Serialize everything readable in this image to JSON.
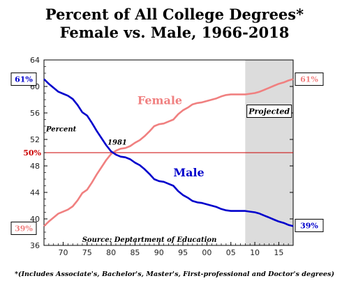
{
  "chart_data": {
    "type": "line",
    "title": "Percent of All College Degrees*",
    "subtitle": "Female vs. Male, 1966-2018",
    "ylabel": "Percent",
    "xlim": [
      1966,
      2018
    ],
    "ylim": [
      36,
      64
    ],
    "yticks": [
      36,
      40,
      44,
      48,
      52,
      56,
      60,
      64
    ],
    "xticks": [
      1970,
      1975,
      1980,
      1985,
      1990,
      1995,
      2000,
      2005,
      2010,
      2015
    ],
    "xtick_labels": [
      "70",
      "75",
      "80",
      "85",
      "90",
      "95",
      "00",
      "05",
      "10",
      "15"
    ],
    "ytick_labels": [
      "36",
      "40",
      "44",
      "48",
      "52",
      "56",
      "60",
      "64"
    ],
    "grid": false,
    "projected_from": 2008,
    "projected_label": "Projected",
    "reference_line": {
      "y": 50,
      "label": "50%",
      "color": "#cc0000"
    },
    "crossover": {
      "x": 1981,
      "label": "1981"
    },
    "series": [
      {
        "name": "Female",
        "color": "#f08080",
        "start_label": "39%",
        "end_label": "61%",
        "x": [
          1966,
          1967,
          1968,
          1969,
          1970,
          1971,
          1972,
          1973,
          1974,
          1975,
          1976,
          1977,
          1978,
          1979,
          1980,
          1981,
          1982,
          1983,
          1984,
          1985,
          1986,
          1987,
          1988,
          1989,
          1990,
          1991,
          1992,
          1993,
          1994,
          1995,
          1996,
          1997,
          1998,
          1999,
          2000,
          2001,
          2002,
          2003,
          2004,
          2005,
          2006,
          2007,
          2008,
          2009,
          2010,
          2011,
          2012,
          2013,
          2014,
          2015,
          2016,
          2017,
          2018
        ],
        "values": [
          38.9,
          39.6,
          40.2,
          40.8,
          41.1,
          41.4,
          41.9,
          42.8,
          43.9,
          44.4,
          45.5,
          46.7,
          47.8,
          48.9,
          49.8,
          50.3,
          50.6,
          50.7,
          51.0,
          51.5,
          51.9,
          52.5,
          53.2,
          54.0,
          54.3,
          54.4,
          54.7,
          55.0,
          55.8,
          56.4,
          56.8,
          57.3,
          57.5,
          57.6,
          57.8,
          58.0,
          58.2,
          58.5,
          58.7,
          58.8,
          58.8,
          58.8,
          58.8,
          58.9,
          59.0,
          59.2,
          59.5,
          59.8,
          60.1,
          60.4,
          60.6,
          60.9,
          61.1
        ]
      },
      {
        "name": "Male",
        "color": "#0000cc",
        "start_label": "61%",
        "end_label": "39%",
        "x": [
          1966,
          1967,
          1968,
          1969,
          1970,
          1971,
          1972,
          1973,
          1974,
          1975,
          1976,
          1977,
          1978,
          1979,
          1980,
          1981,
          1982,
          1983,
          1984,
          1985,
          1986,
          1987,
          1988,
          1989,
          1990,
          1991,
          1992,
          1993,
          1994,
          1995,
          1996,
          1997,
          1998,
          1999,
          2000,
          2001,
          2002,
          2003,
          2004,
          2005,
          2006,
          2007,
          2008,
          2009,
          2010,
          2011,
          2012,
          2013,
          2014,
          2015,
          2016,
          2017,
          2018
        ],
        "values": [
          61.1,
          60.4,
          59.8,
          59.2,
          58.9,
          58.6,
          58.1,
          57.2,
          56.1,
          55.6,
          54.5,
          53.3,
          52.2,
          51.1,
          50.2,
          49.7,
          49.4,
          49.3,
          49.0,
          48.5,
          48.1,
          47.5,
          46.8,
          46.0,
          45.7,
          45.6,
          45.3,
          45.0,
          44.2,
          43.6,
          43.2,
          42.7,
          42.5,
          42.4,
          42.2,
          42.0,
          41.8,
          41.5,
          41.3,
          41.2,
          41.2,
          41.2,
          41.2,
          41.1,
          41.0,
          40.8,
          40.5,
          40.2,
          39.9,
          39.6,
          39.4,
          39.1,
          38.9
        ]
      }
    ],
    "source": "Source: Deptartment of Education",
    "footnote": "*(Includes Associate's, Bachelor's, Master's, First-professional and Doctor's degrees)"
  }
}
